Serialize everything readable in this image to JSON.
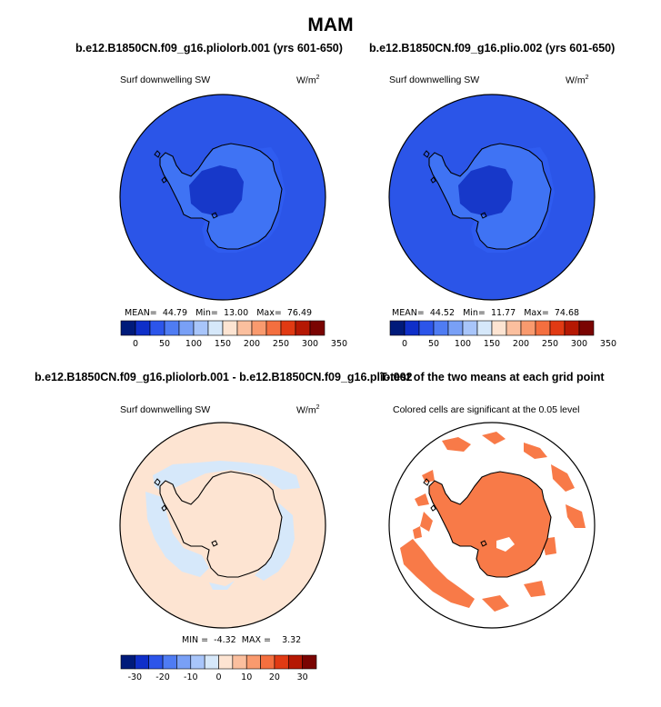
{
  "title": "MAM",
  "colors": {
    "ocean_p1": "#2b55e8",
    "ocean_p1_inner": "#2f5cf0",
    "land_p1_outer": "#3f73f4",
    "land_p1_inner": "#1738c9",
    "ocean_p2": "#2b55e8",
    "ocean_p2_inner": "#2f5cf0",
    "land_p2_outer": "#3f73f4",
    "land_p2_inner": "#1738c9",
    "diff_positive": "#fde4d2",
    "diff_negative": "#d6e8fa",
    "significant": "#f87a48",
    "coast": "#000000"
  },
  "colorbar_colors": [
    "#001a7a",
    "#0f2fc9",
    "#2c55ea",
    "#4f7cf3",
    "#79a0f6",
    "#a8c5fa",
    "#d6e8fa",
    "#fde4d2",
    "#fbbf9e",
    "#f99a6e",
    "#f46f3f",
    "#e13a13",
    "#b51803",
    "#7a0402"
  ],
  "chart_data": [
    {
      "type": "heatmap",
      "title": "b.e12.B1850CN.f09_g16.pliolorb.001 (yrs 601-650)",
      "subtitle": "Surf downwelling SW",
      "units": "W/m",
      "units_sup": "2",
      "stats": {
        "mean_label": "MEAN=",
        "mean": "44.79",
        "min_label": "Min=",
        "min": "13.00",
        "max_label": "Max=",
        "max": "76.49"
      },
      "colorbar_ticks": [
        "0",
        "50",
        "100",
        "150",
        "200",
        "250",
        "300",
        "350"
      ]
    },
    {
      "type": "heatmap",
      "title": "b.e12.B1850CN.f09_g16.plio.002 (yrs 601-650)",
      "subtitle": "Surf downwelling SW",
      "units": "W/m",
      "units_sup": "2",
      "stats": {
        "mean_label": "MEAN=",
        "mean": "44.52",
        "min_label": "Min=",
        "min": "11.77",
        "max_label": "Max=",
        "max": "74.68"
      },
      "colorbar_ticks": [
        "0",
        "50",
        "100",
        "150",
        "200",
        "250",
        "300",
        "350"
      ]
    },
    {
      "type": "heatmap",
      "title": "b.e12.B1850CN.f09_g16.pliolorb.001 - b.e12.B1850CN.f09_g16.plio.002",
      "subtitle": "Surf downwelling SW",
      "units": "W/m",
      "units_sup": "2",
      "stats": {
        "min_label": "MIN =",
        "min": "-4.32",
        "max_label": "MAX =",
        "max": "3.32"
      },
      "colorbar_ticks": [
        "-30",
        "-20",
        "-10",
        "0",
        "10",
        "20",
        "30"
      ]
    },
    {
      "type": "heatmap",
      "title": "T-test of the two means at each grid point",
      "subtitle": "Colored cells are significant at the 0.05 level"
    }
  ]
}
